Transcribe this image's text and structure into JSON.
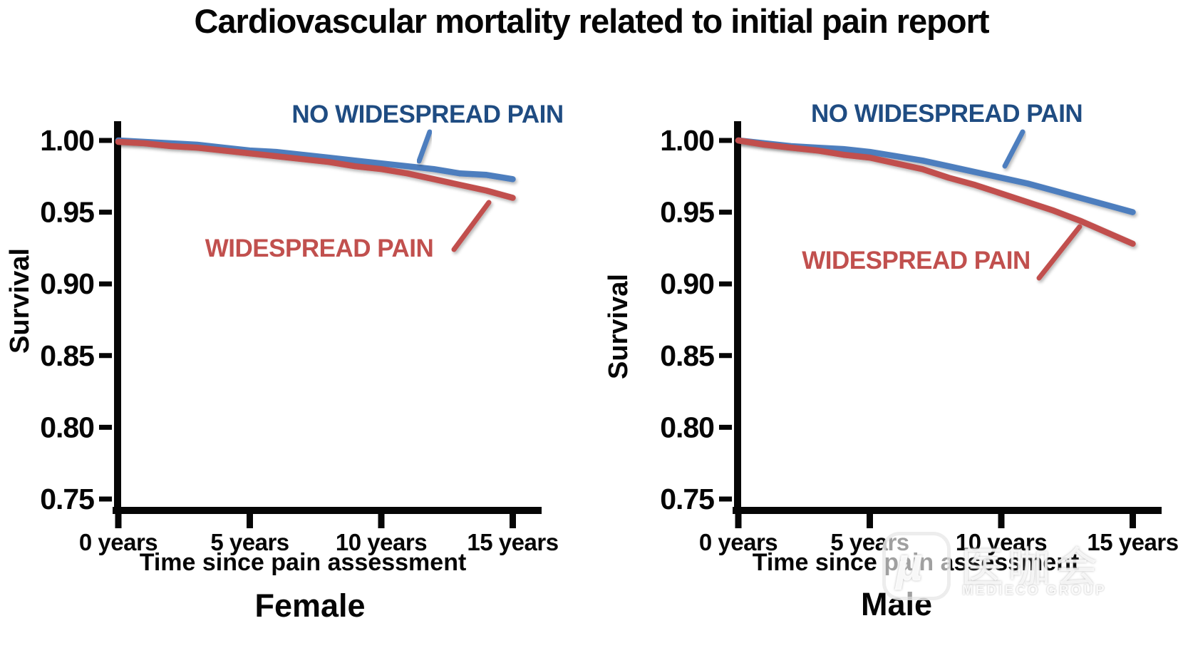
{
  "title": "Cardiovascular mortality related to initial pain report",
  "colors": {
    "curve_blue": "#4D7EBE",
    "curve_red": "#C1504E",
    "label_blue": "#1F4C82",
    "label_red": "#C1504E",
    "axis_black": "#060606"
  },
  "watermark": {
    "logo_glyph": "µ",
    "cjk_text": "医咖会",
    "sub_text": "MEDIECO GROUP"
  },
  "chart_data": [
    {
      "type": "line",
      "panel": "Female",
      "xlabel": "Time since pain assessment",
      "ylabel": "Survival",
      "x_tick_labels": [
        "0 years",
        "5 years",
        "10 years",
        "15 years"
      ],
      "x_tick_values": [
        0,
        5,
        10,
        15
      ],
      "y_tick_labels": [
        "1.00",
        "0.95",
        "0.90",
        "0.85",
        "0.80",
        "0.75"
      ],
      "y_tick_values": [
        1.0,
        0.95,
        0.9,
        0.85,
        0.8,
        0.75
      ],
      "xlim": [
        0,
        16
      ],
      "ylim": [
        0.72,
        1.01
      ],
      "grid": false,
      "x": [
        0,
        1,
        2,
        3,
        4,
        5,
        6,
        7,
        8,
        9,
        10,
        11,
        12,
        13,
        14,
        15
      ],
      "series": [
        {
          "name": "NO WIDESPREAD PAIN",
          "color_key": "curve_blue",
          "values": [
            1.0,
            0.999,
            0.998,
            0.997,
            0.995,
            0.993,
            0.992,
            0.99,
            0.988,
            0.986,
            0.984,
            0.982,
            0.98,
            0.977,
            0.976,
            0.973
          ]
        },
        {
          "name": "WIDESPREAD PAIN",
          "color_key": "curve_red",
          "values": [
            0.999,
            0.998,
            0.996,
            0.995,
            0.993,
            0.991,
            0.989,
            0.987,
            0.985,
            0.982,
            0.98,
            0.977,
            0.973,
            0.969,
            0.965,
            0.96
          ]
        }
      ]
    },
    {
      "type": "line",
      "panel": "Male",
      "xlabel": "Time since pain assessment",
      "ylabel": "Survival",
      "x_tick_labels": [
        "0 years",
        "5 years",
        "10 years",
        "15 years"
      ],
      "x_tick_values": [
        0,
        5,
        10,
        15
      ],
      "y_tick_labels": [
        "1.00",
        "0.95",
        "0.90",
        "0.85",
        "0.80",
        "0.75"
      ],
      "y_tick_values": [
        1.0,
        0.95,
        0.9,
        0.85,
        0.8,
        0.75
      ],
      "xlim": [
        0,
        16
      ],
      "ylim": [
        0.72,
        1.01
      ],
      "grid": false,
      "x": [
        0,
        1,
        2,
        3,
        4,
        5,
        6,
        7,
        8,
        9,
        10,
        11,
        12,
        13,
        14,
        15
      ],
      "series": [
        {
          "name": "NO WIDESPREAD PAIN",
          "color_key": "curve_blue",
          "values": [
            1.0,
            0.998,
            0.996,
            0.995,
            0.994,
            0.992,
            0.989,
            0.986,
            0.982,
            0.978,
            0.974,
            0.97,
            0.965,
            0.96,
            0.955,
            0.95
          ]
        },
        {
          "name": "WIDESPREAD PAIN",
          "color_key": "curve_red",
          "values": [
            1.0,
            0.997,
            0.995,
            0.993,
            0.99,
            0.988,
            0.984,
            0.98,
            0.974,
            0.969,
            0.963,
            0.957,
            0.951,
            0.944,
            0.936,
            0.928
          ]
        }
      ]
    }
  ]
}
